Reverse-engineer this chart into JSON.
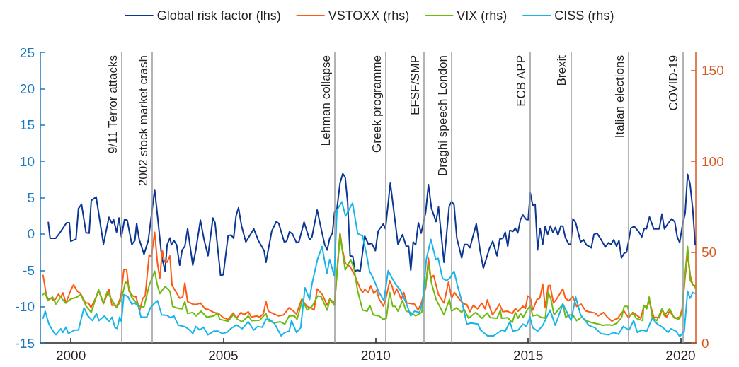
{
  "chart_data": {
    "type": "line",
    "legend": "top",
    "grid": false,
    "marker": "none",
    "line_style": "solid",
    "xlim": [
      1999,
      2020.5
    ],
    "xticks": [
      2000,
      2005,
      2010,
      2015,
      2020
    ],
    "ylim": [
      -15,
      25
    ],
    "yticks": [
      -15,
      -10,
      -5,
      0,
      5,
      10,
      15,
      20,
      25
    ],
    "y2lim": [
      0,
      160
    ],
    "y2ticks": [
      0,
      50,
      100,
      150
    ],
    "ref_lines": [
      {
        "axis": "x",
        "value": 2001.67,
        "label": "9/11 Terror attacks",
        "color": "#9a9a9a"
      },
      {
        "axis": "x",
        "value": 2002.67,
        "label": "2002 stock market crash",
        "color": "#9a9a9a"
      },
      {
        "axis": "x",
        "value": 2008.65,
        "label": "Lehman collapse",
        "color": "#9a9a9a"
      },
      {
        "axis": "x",
        "value": 2010.32,
        "label": "Greek programme",
        "color": "#9a9a9a"
      },
      {
        "axis": "x",
        "value": 2011.58,
        "label": "EFSF/SMP",
        "color": "#9a9a9a"
      },
      {
        "axis": "x",
        "value": 2012.48,
        "label": "Draghi speech London",
        "color": "#9a9a9a"
      },
      {
        "axis": "x",
        "value": 2015.06,
        "label": "ECB APP",
        "color": "#9a9a9a"
      },
      {
        "axis": "x",
        "value": 2016.4,
        "label": "Brexit",
        "color": "#9a9a9a"
      },
      {
        "axis": "x",
        "value": 2018.3,
        "label": "Italian elections",
        "color": "#9a9a9a"
      },
      {
        "axis": "x",
        "value": 2020.07,
        "label": "COVID-19",
        "color": "#9a9a9a"
      }
    ],
    "series": [
      {
        "name": "Global risk factor (lhs)",
        "color": "#0b3694",
        "x": [
          1999.26,
          1999.32,
          1999.5,
          1999.63,
          1999.86,
          1999.95,
          2000.0,
          2000.17,
          2000.25,
          2000.35,
          2000.5,
          2000.6,
          2000.67,
          2000.83,
          2001.07,
          2001.25,
          2001.35,
          2001.4,
          2001.5,
          2001.58,
          2001.66,
          2001.76,
          2001.85,
          2002.0,
          2002.1,
          2002.16,
          2002.24,
          2002.4,
          2002.54,
          2002.75,
          2002.85,
          2002.98,
          2003.09,
          2003.16,
          2003.25,
          2003.3,
          2003.38,
          2003.47,
          2003.57,
          2003.65,
          2003.74,
          2003.83,
          2004.0,
          2004.1,
          2004.25,
          2004.37,
          2004.5,
          2004.66,
          2004.73,
          2004.91,
          2005.0,
          2005.16,
          2005.26,
          2005.34,
          2005.42,
          2005.5,
          2005.6,
          2005.74,
          2006.0,
          2006.15,
          2006.34,
          2006.4,
          2006.59,
          2006.74,
          2006.82,
          2007.0,
          2007.08,
          2007.17,
          2007.27,
          2007.4,
          2007.48,
          2007.65,
          2007.83,
          2007.91,
          2008.08,
          2008.24,
          2008.33,
          2008.41,
          2008.49,
          2008.58,
          2008.65,
          2008.73,
          2008.83,
          2008.92,
          2009.0,
          2009.08,
          2009.16,
          2009.25,
          2009.32,
          2009.41,
          2009.49,
          2009.64,
          2009.76,
          2009.87,
          2009.99,
          2010.08,
          2010.25,
          2010.32,
          2010.48,
          2010.73,
          2010.88,
          2011.0,
          2011.08,
          2011.15,
          2011.23,
          2011.31,
          2011.4,
          2011.49,
          2011.64,
          2011.73,
          2011.83,
          2011.98,
          2012.06,
          2012.24,
          2012.41,
          2012.49,
          2012.57,
          2012.66,
          2012.82,
          2012.91,
          2013.01,
          2013.09,
          2013.3,
          2013.42,
          2013.53,
          2013.59,
          2013.73,
          2013.84,
          2013.98,
          2014.07,
          2014.17,
          2014.25,
          2014.33,
          2014.4,
          2014.5,
          2014.58,
          2014.66,
          2014.75,
          2014.83,
          2014.94,
          2015.0,
          2015.07,
          2015.15,
          2015.23,
          2015.31,
          2015.39,
          2015.48,
          2015.56,
          2015.64,
          2015.73,
          2015.81,
          2015.89,
          2015.98,
          2016.07,
          2016.14,
          2016.22,
          2016.33,
          2016.4,
          2016.47,
          2016.56,
          2016.72,
          2016.82,
          2016.91,
          2017.07,
          2017.16,
          2017.26,
          2017.38,
          2017.53,
          2017.64,
          2017.72,
          2017.81,
          2017.9,
          2017.98,
          2018.06,
          2018.15,
          2018.23,
          2018.37,
          2018.48,
          2018.62,
          2018.73,
          2018.81,
          2018.88,
          2018.98,
          2019.12,
          2019.3,
          2019.39,
          2019.47,
          2019.58,
          2019.71,
          2019.81,
          2019.89,
          2019.97,
          2020.06,
          2020.15,
          2020.23,
          2020.31,
          2020.4,
          2020.48
        ],
        "values": [
          1.6,
          -0.6,
          -0.6,
          0.1,
          1.55,
          1.55,
          -1.0,
          -0.7,
          3.5,
          4.1,
          0.15,
          0.1,
          4.6,
          5.1,
          -1.4,
          2.3,
          1.45,
          2.0,
          0.25,
          2.2,
          -0.4,
          2.0,
          1.9,
          -1.45,
          -0.9,
          1.45,
          -0.7,
          -2.8,
          -0.9,
          6.1,
          2.2,
          -3.1,
          -5.1,
          -1.45,
          -0.55,
          -1.5,
          -0.9,
          -1.5,
          -4.3,
          -2.2,
          -1.7,
          0.75,
          -4.3,
          -2.2,
          1.9,
          -0.8,
          -3.0,
          2.2,
          1.55,
          -5.7,
          -5.6,
          -0.2,
          -0.15,
          -0.6,
          2.5,
          3.6,
          1.1,
          -1.1,
          0.7,
          -0.9,
          -2.3,
          -3.9,
          0.4,
          1.7,
          1.45,
          -1.1,
          -1.0,
          0.3,
          0.0,
          -1.2,
          -1.1,
          1.65,
          -0.8,
          -0.4,
          3.3,
          0.15,
          -1.5,
          -2.2,
          -0.6,
          0.1,
          3.0,
          3.5,
          7.0,
          8.3,
          7.8,
          4.3,
          -3.0,
          -3.1,
          -5.1,
          -5.0,
          -5.1,
          -0.3,
          -1.4,
          -1.3,
          -2.3,
          0.4,
          1.4,
          0.7,
          7.0,
          -1.4,
          -0.1,
          -1.7,
          -1.7,
          -5.0,
          -1.1,
          -1.5,
          1.55,
          0.1,
          3.0,
          6.8,
          3.5,
          1.7,
          3.7,
          -3.9,
          3.8,
          4.5,
          4.0,
          -0.55,
          -3.3,
          -1.45,
          -1.45,
          -1.9,
          1.4,
          -2.2,
          -4.7,
          -3.9,
          -2.0,
          -1.0,
          -3.0,
          -0.7,
          -0.6,
          0.25,
          -1.7,
          0.5,
          0.35,
          0.8,
          0.15,
          2.0,
          2.6,
          2.0,
          1.95,
          5.65,
          3.95,
          4.1,
          -2.2,
          0.8,
          -1.4,
          1.05,
          -0.05,
          1.1,
          0.25,
          0.9,
          -0.15,
          1.1,
          1.05,
          -0.5,
          -1.4,
          -1.45,
          2.1,
          1.55,
          -1.1,
          -0.8,
          -1.5,
          -1.9,
          -0.05,
          0.1,
          -0.7,
          -1.8,
          -1.2,
          -1.45,
          -0.8,
          -1.7,
          -0.9,
          -3.3,
          -2.65,
          -2.5,
          0.8,
          1.05,
          0.35,
          -0.4,
          0.8,
          0.7,
          2.35,
          0.7,
          0.7,
          2.75,
          0.7,
          1.4,
          2.1,
          1.65,
          -0.4,
          -1.2,
          1.2,
          2.85,
          8.2,
          6.9,
          3.4,
          -1.5
        ]
      },
      {
        "name": "VSTOXX (rhs)",
        "color": "#ff5a14",
        "axis": "y2",
        "x": [
          1999.09,
          1999.2,
          1999.27,
          1999.36,
          1999.44,
          1999.5,
          1999.59,
          1999.67,
          1999.74,
          1999.84,
          2000.0,
          2000.09,
          2000.21,
          2000.32,
          2000.48,
          2000.58,
          2000.66,
          2000.83,
          2000.92,
          2001.07,
          2001.25,
          2001.35,
          2001.52,
          2001.64,
          2001.74,
          2001.83,
          2001.91,
          2002.03,
          2002.14,
          2002.26,
          2002.36,
          2002.44,
          2002.57,
          2002.64,
          2002.75,
          2002.84,
          2002.92,
          2003.0,
          2003.07,
          2003.15,
          2003.25,
          2003.32,
          2003.46,
          2003.57,
          2003.67,
          2003.74,
          2003.83,
          2004.0,
          2004.1,
          2004.25,
          2004.4,
          2004.5,
          2004.69,
          2004.85,
          2005.0,
          2005.16,
          2005.33,
          2005.43,
          2005.58,
          2005.68,
          2005.82,
          2005.92,
          2006.09,
          2006.2,
          2006.32,
          2006.4,
          2006.48,
          2006.63,
          2006.82,
          2006.98,
          2007.16,
          2007.3,
          2007.4,
          2007.57,
          2007.75,
          2007.87,
          2007.98,
          2008.08,
          2008.25,
          2008.41,
          2008.49,
          2008.65,
          2008.83,
          2008.91,
          2009.01,
          2009.16,
          2009.32,
          2009.48,
          2009.57,
          2009.65,
          2009.76,
          2009.84,
          2009.94,
          2010.03,
          2010.11,
          2010.25,
          2010.32,
          2010.46,
          2010.54,
          2010.61,
          2010.69,
          2010.84,
          2010.92,
          2011.02,
          2011.27,
          2011.39,
          2011.49,
          2011.64,
          2011.73,
          2011.81,
          2011.9,
          2012.06,
          2012.24,
          2012.39,
          2012.49,
          2012.58,
          2012.74,
          2012.88,
          2012.99,
          2013.09,
          2013.2,
          2013.34,
          2013.48,
          2013.59,
          2013.66,
          2013.83,
          2013.91,
          2014.06,
          2014.17,
          2014.33,
          2014.48,
          2014.58,
          2014.67,
          2014.83,
          2014.91,
          2014.99,
          2015.07,
          2015.15,
          2015.29,
          2015.38,
          2015.48,
          2015.56,
          2015.66,
          2015.72,
          2015.83,
          2015.95,
          2016.14,
          2016.22,
          2016.33,
          2016.47,
          2016.59,
          2016.74,
          2016.88,
          2016.99,
          2017.19,
          2017.3,
          2017.47,
          2017.6,
          2017.75,
          2017.85,
          2017.94,
          2018.06,
          2018.14,
          2018.29,
          2018.43,
          2018.54,
          2018.7,
          2018.79,
          2018.91,
          2018.97,
          2019.12,
          2019.31,
          2019.39,
          2019.54,
          2019.64,
          2019.81,
          2019.97,
          2020.05,
          2020.15,
          2020.23,
          2020.32,
          2020.4,
          2020.48
        ],
        "values": [
          37.2,
          25.9,
          24,
          24.6,
          23.3,
          24.2,
          26.8,
          25.3,
          27.6,
          22,
          29.1,
          32,
          28.5,
          27.2,
          22,
          22,
          19.4,
          25.3,
          28.5,
          21.6,
          29.4,
          20.7,
          20.7,
          25.3,
          40.5,
          40.5,
          28.5,
          25.9,
          25.3,
          17.7,
          24.6,
          25.9,
          48.6,
          47.3,
          60.9,
          44,
          35.6,
          50.9,
          44.7,
          44.4,
          47.9,
          31.7,
          27.8,
          24.6,
          25.3,
          33,
          22.7,
          21.4,
          21.1,
          22,
          18.8,
          18.5,
          16.8,
          16.2,
          13.9,
          13,
          16.5,
          13.6,
          16.8,
          15.5,
          17.2,
          14.2,
          14.9,
          14.2,
          16.2,
          22.9,
          17.5,
          16.2,
          14.9,
          15.5,
          19.4,
          17.5,
          15.9,
          24,
          20.1,
          19.4,
          18.1,
          29.8,
          26.6,
          20.7,
          24.2,
          22,
          60.5,
          51.2,
          43.7,
          42.1,
          36.9,
          30.4,
          27.8,
          29.4,
          27.8,
          31.5,
          27.2,
          29.1,
          24.2,
          20.3,
          23.3,
          34.3,
          31.1,
          26.6,
          29.8,
          24,
          27.8,
          22,
          21.4,
          18.1,
          21.6,
          30.4,
          46.6,
          35.6,
          37.2,
          26.6,
          22,
          33.7,
          24.6,
          27.8,
          24.2,
          21.6,
          21.1,
          17.2,
          20.7,
          18.8,
          22,
          18.8,
          23.7,
          15.5,
          17.2,
          21.4,
          17.2,
          17.5,
          16.2,
          19,
          17.5,
          20.3,
          19,
          25.9,
          25,
          18.1,
          24,
          24.6,
          32.4,
          19.4,
          31.5,
          31.7,
          22,
          24.6,
          29.8,
          24.6,
          23.3,
          25.5,
          20.1,
          21.4,
          17.7,
          17.2,
          16.5,
          14.9,
          16.8,
          14.2,
          12,
          13,
          13.6,
          16.5,
          17.7,
          13.9,
          16.8,
          15.5,
          13.6,
          20.1,
          20.1,
          23.3,
          14.2,
          13.9,
          18.5,
          14.2,
          17.5,
          13.6,
          14.2,
          18.8,
          36.3,
          48.6,
          36.9,
          32,
          31.5
        ]
      },
      {
        "name": "VIX (rhs)",
        "color": "#6cbb10",
        "axis": "y2",
        "x": [
          1999.09,
          1999.16,
          1999.24,
          1999.4,
          1999.51,
          1999.67,
          1999.82,
          2000.0,
          2000.17,
          2000.32,
          2000.5,
          2000.67,
          2000.91,
          2001.07,
          2001.2,
          2001.33,
          2001.5,
          2001.66,
          2001.79,
          2001.87,
          2001.99,
          2002.26,
          2002.4,
          2002.57,
          2002.75,
          2002.84,
          2002.92,
          2003.09,
          2003.25,
          2003.34,
          2003.53,
          2003.65,
          2003.74,
          2003.83,
          2004.0,
          2004.11,
          2004.27,
          2004.46,
          2004.69,
          2004.81,
          2004.89,
          2005.16,
          2005.33,
          2005.47,
          2005.62,
          2005.82,
          2005.93,
          2006.2,
          2006.4,
          2006.48,
          2006.67,
          2006.86,
          2007.02,
          2007.16,
          2007.33,
          2007.42,
          2007.6,
          2007.75,
          2007.91,
          2008.1,
          2008.21,
          2008.41,
          2008.5,
          2008.65,
          2008.83,
          2009.0,
          2009.18,
          2009.29,
          2009.41,
          2009.57,
          2009.72,
          2009.81,
          2009.92,
          2010.11,
          2010.25,
          2010.35,
          2010.46,
          2010.56,
          2010.64,
          2010.73,
          2010.88,
          2011.0,
          2011.15,
          2011.31,
          2011.51,
          2011.58,
          2011.73,
          2011.83,
          2011.98,
          2012.24,
          2012.42,
          2012.49,
          2012.65,
          2012.82,
          2012.89,
          2013.05,
          2013.28,
          2013.48,
          2013.66,
          2013.76,
          2013.98,
          2014.09,
          2014.13,
          2014.33,
          2014.48,
          2014.58,
          2014.67,
          2014.75,
          2014.84,
          2014.99,
          2015.07,
          2015.15,
          2015.29,
          2015.41,
          2015.56,
          2015.66,
          2015.75,
          2015.85,
          2015.98,
          2016.14,
          2016.23,
          2016.36,
          2016.49,
          2016.59,
          2016.76,
          2016.91,
          2017.07,
          2017.3,
          2017.45,
          2017.61,
          2017.76,
          2017.92,
          2018.07,
          2018.15,
          2018.27,
          2018.32,
          2018.46,
          2018.54,
          2018.76,
          2018.79,
          2018.89,
          2018.97,
          2019.07,
          2019.22,
          2019.39,
          2019.47,
          2019.64,
          2019.78,
          2019.93,
          2020.05,
          2020.12,
          2020.23,
          2020.32,
          2020.4,
          2020.48
        ],
        "values": [
          26.6,
          27.8,
          23.3,
          25.3,
          21.4,
          25.3,
          22,
          24.2,
          25,
          26.6,
          20.3,
          16.8,
          29.4,
          22,
          28.5,
          24,
          19.4,
          24,
          33.7,
          32.4,
          25.3,
          20.1,
          19.8,
          31.7,
          39.5,
          31.7,
          27.2,
          31.1,
          28.5,
          20.1,
          19,
          18.8,
          22.7,
          16.2,
          16.8,
          14.9,
          17.5,
          14.2,
          14.9,
          16.5,
          13,
          12,
          15.5,
          13,
          11.7,
          14.9,
          12.3,
          12.6,
          16.2,
          12.3,
          11,
          11.7,
          10.4,
          14.9,
          14.9,
          13,
          24,
          18.1,
          20.1,
          25.9,
          25.5,
          18.1,
          24,
          20.7,
          59.6,
          40.2,
          46,
          40.8,
          28.5,
          18.1,
          17.5,
          20.7,
          15.5,
          14.9,
          13,
          13.6,
          27.8,
          20.1,
          20.1,
          17.5,
          23.3,
          17.5,
          16.8,
          14.9,
          16.8,
          25.3,
          43.1,
          33,
          24,
          15.5,
          24,
          17.5,
          19.4,
          16.8,
          18.8,
          13.6,
          16.8,
          13.6,
          16.5,
          13.9,
          13.6,
          18.1,
          13.6,
          13.9,
          11.3,
          16.8,
          13.6,
          16.2,
          14.2,
          18.8,
          20.7,
          14.9,
          15.5,
          14.2,
          13.6,
          27.8,
          24,
          15.5,
          18.1,
          21.4,
          14.2,
          15.5,
          14.9,
          12.3,
          14.2,
          12.3,
          11.3,
          10.4,
          9.7,
          10,
          9.7,
          11,
          14.2,
          20.1,
          20.1,
          14.9,
          16.2,
          13.6,
          12.3,
          20.7,
          18.8,
          25.3,
          14.2,
          12.3,
          18.8,
          14.9,
          18.8,
          14.2,
          13,
          16.2,
          33,
          53.1,
          34.3,
          32.4,
          30.4
        ]
      },
      {
        "name": "CISS (rhs)",
        "color": "#1ab4e8",
        "axis": "y2",
        "x": [
          1999.09,
          1999.16,
          1999.28,
          1999.44,
          1999.51,
          1999.67,
          1999.74,
          1999.84,
          1999.92,
          2000.12,
          2000.25,
          2000.43,
          2000.56,
          2000.71,
          2000.84,
          2000.92,
          2001.1,
          2001.25,
          2001.35,
          2001.45,
          2001.52,
          2001.6,
          2001.66,
          2001.74,
          2001.87,
          2002.0,
          2002.1,
          2002.22,
          2002.3,
          2002.49,
          2002.61,
          2002.72,
          2002.84,
          2002.98,
          2003.15,
          2003.27,
          2003.38,
          2003.53,
          2003.73,
          2003.88,
          2004.0,
          2004.1,
          2004.23,
          2004.35,
          2004.5,
          2004.69,
          2004.83,
          2004.97,
          2005.12,
          2005.24,
          2005.43,
          2005.62,
          2005.82,
          2006.0,
          2006.13,
          2006.28,
          2006.4,
          2006.51,
          2006.67,
          2006.9,
          2007.02,
          2007.16,
          2007.24,
          2007.4,
          2007.54,
          2007.68,
          2007.83,
          2007.91,
          2008.09,
          2008.24,
          2008.4,
          2008.49,
          2008.64,
          2008.73,
          2008.89,
          2009.01,
          2009.24,
          2009.41,
          2009.57,
          2009.7,
          2009.8,
          2009.92,
          2010.11,
          2010.27,
          2010.41,
          2010.54,
          2010.65,
          2010.81,
          2011.0,
          2011.15,
          2011.27,
          2011.44,
          2011.54,
          2011.66,
          2011.81,
          2011.97,
          2012.05,
          2012.19,
          2012.32,
          2012.43,
          2012.57,
          2012.68,
          2012.82,
          2012.99,
          2013.13,
          2013.35,
          2013.44,
          2013.67,
          2013.87,
          2014.14,
          2014.25,
          2014.4,
          2014.5,
          2014.67,
          2014.83,
          2014.94,
          2015.06,
          2015.15,
          2015.31,
          2015.48,
          2015.72,
          2015.89,
          2016.14,
          2016.41,
          2016.56,
          2016.72,
          2016.99,
          2017.19,
          2017.38,
          2017.65,
          2017.81,
          2017.96,
          2018.12,
          2018.31,
          2018.46,
          2018.58,
          2018.73,
          2018.89,
          2019.07,
          2019.24,
          2019.43,
          2019.59,
          2019.68,
          2019.85,
          2019.97,
          2020.12,
          2020.23,
          2020.31,
          2020.4,
          2020.48
        ],
        "values": [
          13.6,
          17.5,
          10.4,
          5.8,
          4.5,
          7.8,
          5.8,
          8.7,
          5.2,
          7.1,
          7.1,
          19.4,
          14.9,
          12.3,
          16.2,
          12.3,
          14.9,
          11.7,
          14.2,
          8.4,
          8,
          14.2,
          11.7,
          26.6,
          25.5,
          21.4,
          22,
          20.1,
          14.2,
          14.2,
          19.4,
          21.4,
          23.3,
          15.5,
          15.2,
          13.9,
          14.9,
          9.7,
          9.1,
          7.4,
          5.2,
          9.1,
          7.1,
          8.7,
          4.5,
          6.5,
          6.5,
          5.2,
          5.8,
          7.8,
          10,
          7.8,
          11.7,
          7.1,
          9.1,
          8.7,
          13,
          13,
          11,
          3.9,
          5.8,
          6.5,
          12.3,
          5.8,
          8.4,
          30.4,
          24,
          32.4,
          46,
          53.1,
          38.2,
          46,
          36.9,
          73.2,
          77.7,
          69.9,
          77,
          60.2,
          58.9,
          48.6,
          39.5,
          35.6,
          27.8,
          23.3,
          39.8,
          35.6,
          32.4,
          29.1,
          22,
          14.9,
          17.5,
          16.8,
          22.7,
          46,
          57,
          46,
          46.6,
          35.6,
          34.3,
          35.6,
          39.5,
          31.7,
          23.3,
          10.4,
          11,
          10.4,
          7.1,
          3.9,
          3.9,
          7.1,
          6.5,
          11.7,
          6.5,
          7.1,
          10.4,
          9.1,
          14.2,
          8.4,
          6.5,
          9.7,
          18.1,
          9.7,
          21.4,
          12.3,
          25.3,
          15.5,
          9.7,
          8.4,
          5.2,
          4.5,
          5.8,
          4.8,
          9.1,
          7.1,
          12.3,
          5.8,
          7.1,
          6.5,
          13.6,
          10.4,
          8.4,
          5.8,
          7.8,
          6.5,
          3.5,
          6.5,
          28.5,
          24.6,
          27.8,
          27.2
        ]
      }
    ]
  }
}
